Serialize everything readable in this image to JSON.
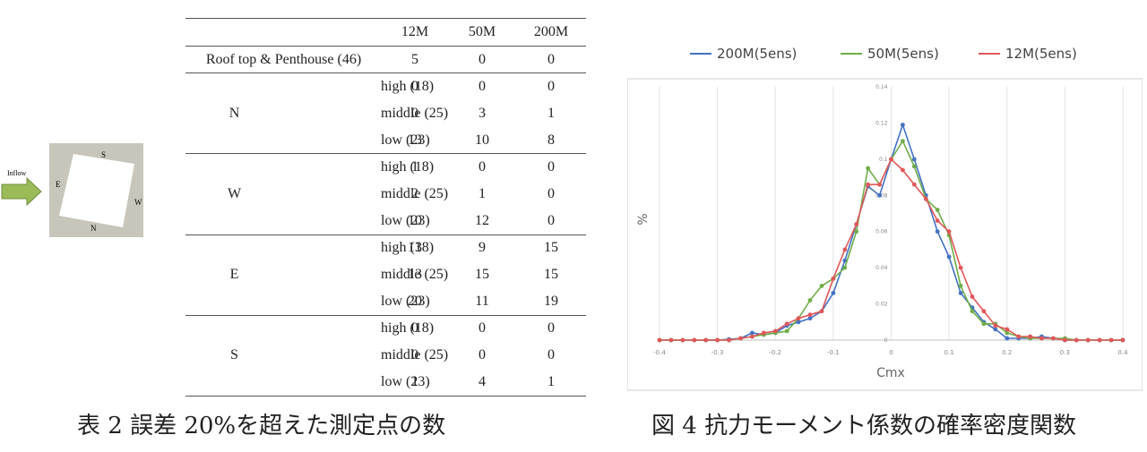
{
  "sketch": {
    "inflow_label": "Inflow",
    "side_labels": {
      "S": "S",
      "E": "E",
      "W": "W",
      "N": "N"
    },
    "colors": {
      "arrow_fill": "#9bbb59",
      "arrow_stroke": "#6f8e3a",
      "site": "#c8c5ba",
      "building": "#ffffff"
    }
  },
  "table": {
    "headers": [
      "",
      "",
      "12M",
      "50M",
      "200M"
    ],
    "roof_row": {
      "label": "Roof top & Penthouse (46)",
      "values": [
        "5",
        "0",
        "0"
      ]
    },
    "groups": [
      {
        "name": "N",
        "rows": [
          {
            "label": "high (18)",
            "values": [
              "0",
              "0",
              "0"
            ]
          },
          {
            "label": "middle (25)",
            "values": [
              "0",
              "3",
              "1"
            ]
          },
          {
            "label": "low (23)",
            "values": [
              "13",
              "10",
              "8"
            ]
          }
        ]
      },
      {
        "name": "W",
        "rows": [
          {
            "label": "high (18)",
            "values": [
              "1",
              "0",
              "0"
            ]
          },
          {
            "label": "middle (25)",
            "values": [
              "2",
              "1",
              "0"
            ]
          },
          {
            "label": "low (23)",
            "values": [
              "10",
              "12",
              "0"
            ]
          }
        ]
      },
      {
        "name": "E",
        "rows": [
          {
            "label": "high (18)",
            "values": [
              "13",
              "9",
              "15"
            ]
          },
          {
            "label": "middle (25)",
            "values": [
              "13",
              "15",
              "15"
            ]
          },
          {
            "label": "low (23)",
            "values": [
              "20",
              "11",
              "19"
            ]
          }
        ]
      },
      {
        "name": "S",
        "rows": [
          {
            "label": "high (18)",
            "values": [
              "0",
              "0",
              "0"
            ]
          },
          {
            "label": "middle (25)",
            "values": [
              "0",
              "0",
              "0"
            ]
          },
          {
            "label": "low (23)",
            "values": [
              "1",
              "4",
              "1"
            ]
          }
        ]
      }
    ]
  },
  "captions": {
    "table": "表 2  誤差 20%を超えた測定点の数",
    "figure": "図 4  抗力モーメント係数の確率密度関数"
  },
  "chart_data": {
    "type": "line",
    "xlabel": "Cmx",
    "ylabel": "%",
    "xlim": [
      -0.4,
      0.4
    ],
    "ylim": [
      0,
      0.14
    ],
    "x_ticks": [
      "-0.4",
      "-0.3",
      "-0.2",
      "-0.1",
      "0",
      "0.1",
      "0.2",
      "0.3",
      "0.4"
    ],
    "y_ticks": [
      "0",
      "0.02",
      "0.04",
      "0.06",
      "0.08",
      "0.1",
      "0.12",
      "0.14"
    ],
    "grid": "vertical",
    "legend_position": "top",
    "x": [
      -0.4,
      -0.38,
      -0.36,
      -0.34,
      -0.32,
      -0.3,
      -0.28,
      -0.26,
      -0.24,
      -0.22,
      -0.2,
      -0.18,
      -0.16,
      -0.14,
      -0.12,
      -0.1,
      -0.08,
      -0.06,
      -0.04,
      -0.02,
      0.0,
      0.02,
      0.04,
      0.06,
      0.08,
      0.1,
      0.12,
      0.14,
      0.16,
      0.18,
      0.2,
      0.22,
      0.24,
      0.26,
      0.28,
      0.3,
      0.32,
      0.34,
      0.36,
      0.38,
      0.4
    ],
    "series": [
      {
        "name": "200M(5ens)",
        "color": "#4472c4",
        "values": [
          0,
          0,
          0,
          0,
          0,
          0,
          0.0005,
          0.001,
          0.004,
          0.003,
          0.004,
          0.008,
          0.01,
          0.012,
          0.016,
          0.026,
          0.044,
          0.064,
          0.085,
          0.08,
          0.1,
          0.119,
          0.1,
          0.08,
          0.06,
          0.046,
          0.026,
          0.018,
          0.01,
          0.006,
          0.001,
          0.001,
          0.001,
          0.002,
          0.001,
          0,
          0,
          0,
          0,
          0,
          0
        ]
      },
      {
        "name": "50M(5ens)",
        "color": "#70ad47",
        "values": [
          0,
          0,
          0,
          0,
          0,
          0,
          0,
          0.001,
          0.002,
          0.003,
          0.004,
          0.005,
          0.012,
          0.022,
          0.03,
          0.034,
          0.04,
          0.06,
          0.095,
          0.086,
          0.1,
          0.11,
          0.096,
          0.078,
          0.072,
          0.058,
          0.03,
          0.016,
          0.009,
          0.009,
          0.004,
          0.002,
          0.001,
          0.001,
          0.001,
          0.001,
          0,
          0,
          0,
          0,
          0
        ]
      },
      {
        "name": "12M(5ens)",
        "color": "#e15759",
        "values": [
          0,
          0,
          0,
          0,
          0,
          0,
          0,
          0.001,
          0.002,
          0.004,
          0.005,
          0.009,
          0.012,
          0.014,
          0.016,
          0.034,
          0.05,
          0.064,
          0.086,
          0.086,
          0.1,
          0.094,
          0.086,
          0.078,
          0.066,
          0.06,
          0.04,
          0.024,
          0.016,
          0.008,
          0.006,
          0.002,
          0.002,
          0.001,
          0.001,
          0,
          0,
          0,
          0,
          0,
          0
        ]
      }
    ]
  }
}
